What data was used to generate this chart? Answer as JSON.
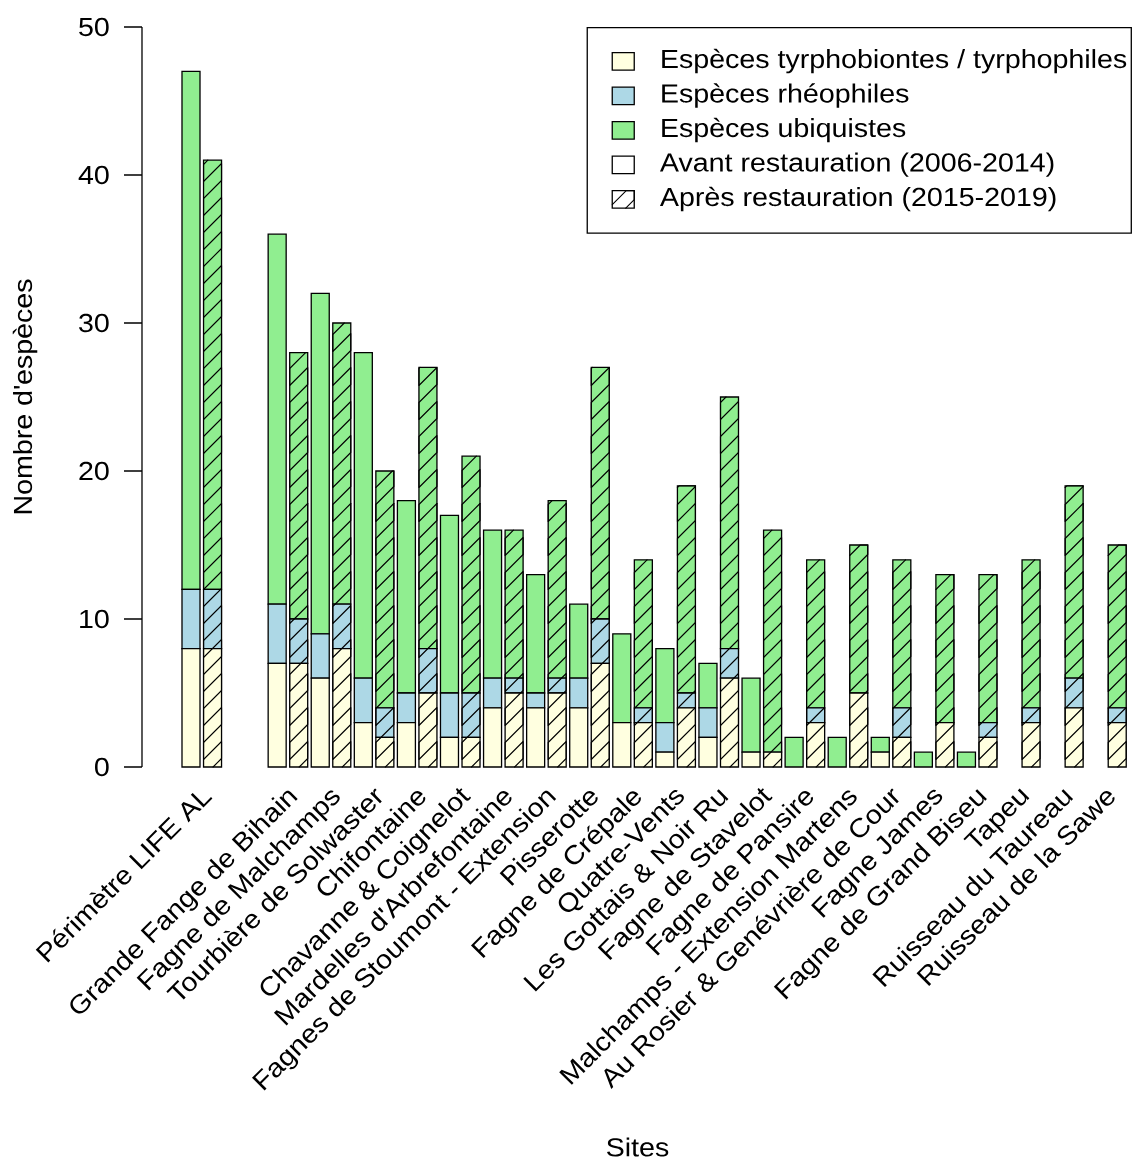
{
  "chart_data": {
    "type": "bar",
    "stacked": true,
    "ylabel": "Nombre d'espèces",
    "xlabel": "Sites",
    "legend": "top right",
    "ylim": [
      0,
      50
    ],
    "yticks": [
      0,
      10,
      20,
      30,
      40,
      50
    ],
    "categories": [
      null,
      "Périmètre LIFE AL",
      null,
      null,
      null,
      "Grande Fange de Bihain",
      null,
      "Fagne de Malchamps",
      null,
      "Tourbière de Solwaster",
      null,
      "Chifontaine",
      null,
      "Chavanne & Coignelot",
      null,
      "Mardelles d'Arbrefontaine",
      null,
      "Fagnes de Stoumont - Extension",
      null,
      "Pisserotte",
      null,
      "Fagne de Crépale",
      null,
      "Quatre-Vents",
      null,
      "Les Gottais & Noir Ru",
      null,
      "Fagne de Stavelot",
      null,
      "Fagne de Pansire",
      null,
      "Malchamps - Extension Martens",
      null,
      "Au Rosier & Genévrière de Cour",
      null,
      "Fagne James",
      null,
      "Fagne de Grand Biseu",
      null,
      "Tapeu",
      null,
      "Ruisseau du Taureau",
      null,
      "Ruisseau de la Sawe"
    ],
    "annotations": [
      "Avant restauration (2006-2014)",
      "Après restauration (2015-2019)"
    ],
    "series": [
      {
        "name": "Espèces tyrphobiontes / tyrphophiles",
        "color": "#ffffe0",
        "values": [
          8,
          8,
          null,
          null,
          7,
          7,
          6,
          8,
          3,
          2,
          3,
          5,
          2,
          2,
          4,
          5,
          4,
          5,
          4,
          7,
          3,
          3,
          1,
          4,
          2,
          6,
          1,
          1,
          0,
          3,
          0,
          5,
          1,
          2,
          0,
          3,
          0,
          2,
          0,
          3,
          0,
          4,
          0,
          3
        ]
      },
      {
        "name": "Espèces rhéophiles",
        "color": "#add8e6",
        "values": [
          4,
          4,
          null,
          null,
          4,
          3,
          3,
          3,
          3,
          2,
          2,
          3,
          3,
          3,
          2,
          1,
          1,
          1,
          2,
          3,
          0,
          1,
          2,
          1,
          2,
          2,
          0,
          0,
          0,
          1,
          0,
          0,
          0,
          2,
          0,
          0,
          0,
          1,
          0,
          1,
          0,
          2,
          0,
          1
        ]
      },
      {
        "name": "Espèces ubiquistes",
        "color": "#90ee90",
        "values": [
          35,
          29,
          null,
          null,
          25,
          18,
          23,
          19,
          22,
          16,
          13,
          19,
          12,
          16,
          10,
          10,
          8,
          12,
          5,
          17,
          6,
          10,
          5,
          14,
          3,
          17,
          5,
          15,
          2,
          10,
          2,
          10,
          1,
          10,
          1,
          10,
          1,
          10,
          0,
          10,
          0,
          13,
          0,
          11
        ]
      }
    ]
  }
}
